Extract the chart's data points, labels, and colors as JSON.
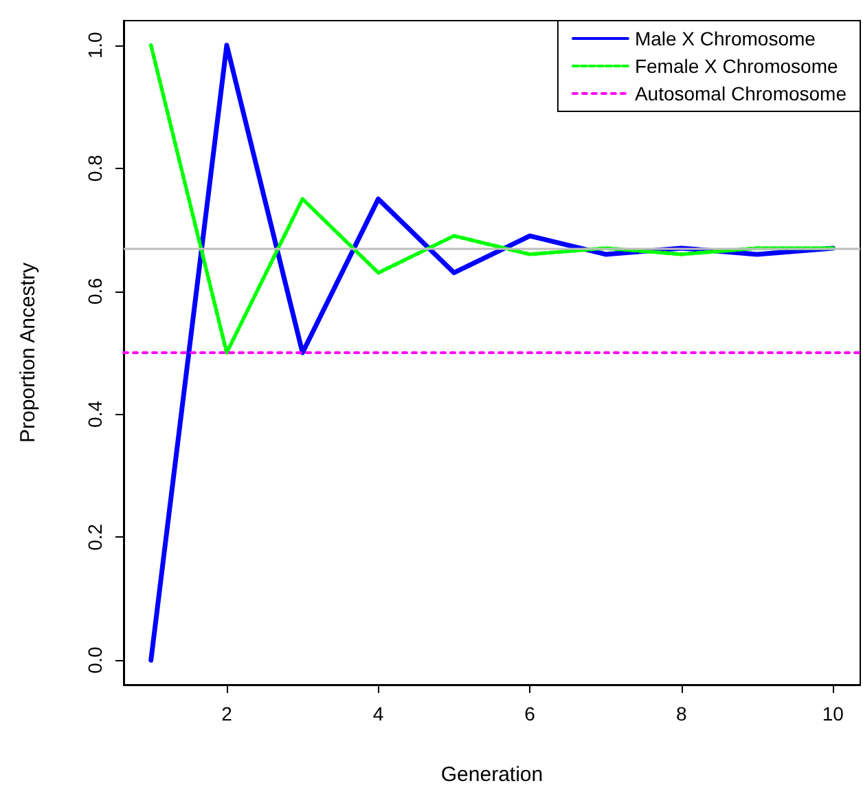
{
  "chart_data": {
    "type": "line",
    "xlabel": "Generation",
    "ylabel": "Proportion Ancestry",
    "x": [
      1,
      2,
      3,
      4,
      5,
      6,
      7,
      8,
      9,
      10
    ],
    "series": [
      {
        "name": "Male X Chromosome",
        "color": "#0000ff",
        "line_style": "solid",
        "values": [
          0,
          1,
          0.5,
          0.75,
          0.63,
          0.69,
          0.66,
          0.67,
          0.66,
          0.67
        ]
      },
      {
        "name": "Female X Chromosome",
        "color": "#00ff00",
        "line_style": "dashed",
        "values": [
          1,
          0.5,
          0.75,
          0.63,
          0.69,
          0.66,
          0.67,
          0.66,
          0.67,
          0.67
        ]
      },
      {
        "name": "Autosomal Chromosome",
        "color": "#ff00ff",
        "line_style": "dotted",
        "x": [
          0.64,
          10.36
        ],
        "values": [
          0.5,
          0.5
        ]
      }
    ],
    "ref_lines": [
      {
        "axis": "y",
        "value": 0.67,
        "color": "#bebebe"
      }
    ],
    "xlim": [
      0.64,
      10.36
    ],
    "xticks": [
      2,
      4,
      6,
      8,
      10
    ],
    "ylim": [
      -0.04,
      1.04
    ],
    "yticks": [
      {
        "value": 0,
        "label": "0.0"
      },
      0.2,
      0.4,
      0.6,
      0.8,
      {
        "value": 1,
        "label": "1.0"
      }
    ],
    "grid": false,
    "legend": "top right",
    "marker": "none"
  }
}
